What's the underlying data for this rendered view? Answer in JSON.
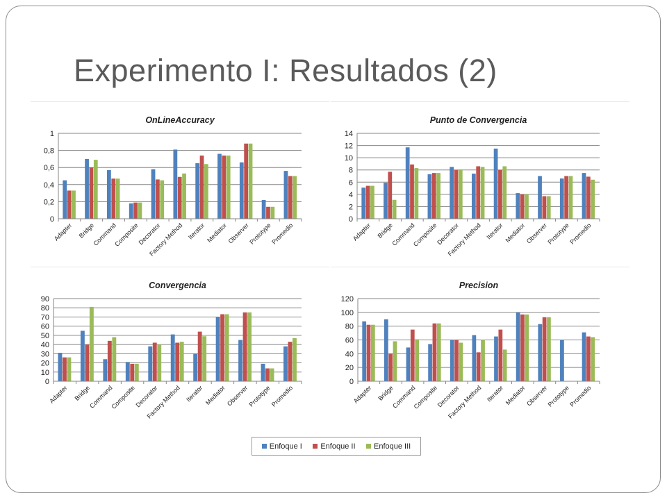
{
  "slide": {
    "title": "Experimento I: Resultados (2)"
  },
  "colors": {
    "enfoque1": "#4f81bd",
    "enfoque2": "#c0504d",
    "enfoque3": "#9bbb59",
    "grid": "#868686"
  },
  "legend": [
    "Enfoque I",
    "Enfoque II",
    "Enfoque  III"
  ],
  "chart_data": [
    {
      "type": "bar",
      "title": "OnLineAccuracy",
      "categories": [
        "Adapter",
        "Bridge",
        "Command",
        "Composite",
        "Decorator",
        "Factory Method",
        "Iterator",
        "Mediator",
        "Observer",
        "Prototype",
        "Promedio"
      ],
      "series": [
        {
          "name": "Enfoque I",
          "values": [
            0.45,
            0.7,
            0.57,
            0.18,
            0.58,
            0.81,
            0.65,
            0.76,
            0.66,
            0.22,
            0.56
          ]
        },
        {
          "name": "Enfoque II",
          "values": [
            0.33,
            0.6,
            0.47,
            0.19,
            0.46,
            0.49,
            0.74,
            0.74,
            0.88,
            0.14,
            0.5
          ]
        },
        {
          "name": "Enfoque  III",
          "values": [
            0.33,
            0.69,
            0.47,
            0.19,
            0.45,
            0.53,
            0.64,
            0.74,
            0.88,
            0.14,
            0.5
          ]
        }
      ],
      "ylim": [
        0,
        1
      ],
      "yticks": [
        "0",
        "0,2",
        "0,4",
        "0,6",
        "0,8",
        "1"
      ],
      "grid": true
    },
    {
      "type": "bar",
      "title": "Punto de Convergencia",
      "categories": [
        "Adapter",
        "Bridge",
        "Command",
        "Composite",
        "Decorator",
        "Factory Method",
        "Iterator",
        "Mediator",
        "Observer",
        "Prototype",
        "Promedio"
      ],
      "series": [
        {
          "name": "Enfoque I",
          "values": [
            5.1,
            5.9,
            11.7,
            7.3,
            8.5,
            7.4,
            11.5,
            4.2,
            7.0,
            6.6,
            7.5
          ]
        },
        {
          "name": "Enfoque II",
          "values": [
            5.4,
            7.7,
            8.9,
            7.5,
            8.0,
            8.6,
            8.0,
            4.0,
            3.7,
            7.0,
            6.9
          ]
        },
        {
          "name": "Enfoque  III",
          "values": [
            5.4,
            3.1,
            8.3,
            7.5,
            8.1,
            8.5,
            8.6,
            4.0,
            3.7,
            7.0,
            6.4
          ]
        }
      ],
      "ylim": [
        0,
        14
      ],
      "yticks": [
        "0",
        "2",
        "4",
        "6",
        "8",
        "10",
        "12",
        "14"
      ],
      "grid": true
    },
    {
      "type": "bar",
      "title": "Convergencia",
      "categories": [
        "Adapter",
        "Bridge",
        "Command",
        "Composite",
        "Decorator",
        "Factory Method",
        "Iterator",
        "Mediator",
        "Observer",
        "Prototype",
        "Promedio"
      ],
      "series": [
        {
          "name": "Enfoque I",
          "values": [
            31,
            55,
            24,
            21,
            38,
            51,
            30,
            70,
            45,
            19,
            38
          ]
        },
        {
          "name": "Enfoque II",
          "values": [
            26,
            40,
            44,
            19,
            42,
            42,
            54,
            73,
            75,
            14,
            43
          ]
        },
        {
          "name": "Enfoque  III",
          "values": [
            26,
            81,
            48,
            19,
            40,
            43,
            49,
            73,
            75,
            14,
            47
          ]
        }
      ],
      "ylim": [
        0,
        90
      ],
      "yticks": [
        "0",
        "10",
        "20",
        "30",
        "40",
        "50",
        "60",
        "70",
        "80",
        "90"
      ],
      "grid": true
    },
    {
      "type": "bar",
      "title": "Precision",
      "categories": [
        "Adapter",
        "Bridge",
        "Command",
        "Composite",
        "Decorator",
        "Factory Method",
        "Iterator",
        "Mediator",
        "Observer",
        "Prototype",
        "Promedio"
      ],
      "series": [
        {
          "name": "Enfoque I",
          "values": [
            87,
            90,
            49,
            54,
            60,
            67,
            65,
            100,
            83,
            60,
            71
          ]
        },
        {
          "name": "Enfoque II",
          "values": [
            82,
            40,
            75,
            84,
            60,
            42,
            75,
            97,
            93,
            0.5,
            65
          ]
        },
        {
          "name": "Enfoque  III",
          "values": [
            82,
            58,
            61,
            84,
            56,
            60,
            46,
            97,
            93,
            0.5,
            64
          ]
        }
      ],
      "ylim": [
        0,
        120
      ],
      "yticks": [
        "0",
        "20",
        "40",
        "60",
        "80",
        "100",
        "120"
      ],
      "grid": true
    }
  ]
}
